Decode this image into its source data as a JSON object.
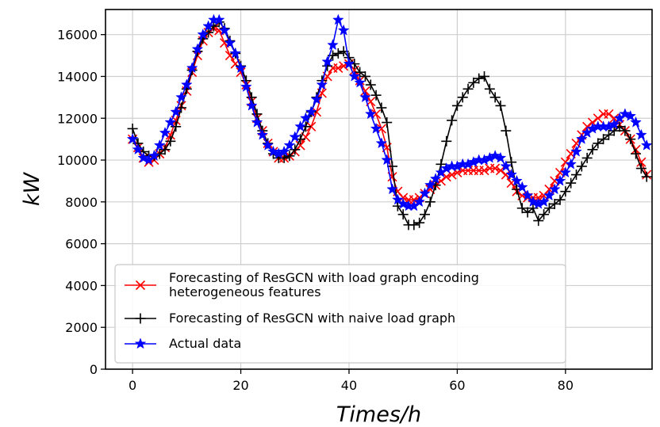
{
  "chart_data": {
    "type": "line",
    "xlabel": "Times/h",
    "ylabel": "kW",
    "xlim": [
      -5,
      96
    ],
    "ylim": [
      0,
      17200
    ],
    "x_ticks": [
      0,
      20,
      40,
      60,
      80
    ],
    "y_ticks": [
      0,
      2000,
      4000,
      6000,
      8000,
      10000,
      12000,
      14000,
      16000
    ],
    "grid": true,
    "legend_position": "lower-left",
    "series": [
      {
        "name": "Forecasting of ResGCN with load graph encoding heterogeneous features",
        "name_lines": [
          "Forecasting of ResGCN with load graph encoding",
          "heterogeneous features"
        ],
        "color": "#ff0000",
        "marker": "x",
        "x": [
          0,
          1,
          2,
          3,
          4,
          5,
          6,
          7,
          8,
          9,
          10,
          11,
          12,
          13,
          14,
          15,
          16,
          17,
          18,
          19,
          20,
          21,
          22,
          23,
          24,
          25,
          26,
          27,
          28,
          29,
          30,
          31,
          32,
          33,
          34,
          35,
          36,
          37,
          38,
          39,
          40,
          41,
          42,
          43,
          44,
          45,
          46,
          47,
          48,
          49,
          50,
          51,
          52,
          53,
          54,
          55,
          56,
          57,
          58,
          59,
          60,
          61,
          62,
          63,
          64,
          65,
          66,
          67,
          68,
          69,
          70,
          71,
          72,
          73,
          74,
          75,
          76,
          77,
          78,
          79,
          80,
          81,
          82,
          83,
          84,
          85,
          86,
          87,
          88,
          89,
          90,
          91,
          92,
          93,
          94,
          95
        ],
        "values": [
          11000,
          10600,
          10100,
          9900,
          10000,
          10300,
          10600,
          11200,
          11900,
          12600,
          13300,
          14200,
          15000,
          15700,
          16100,
          16300,
          16200,
          15600,
          15000,
          14600,
          14200,
          13600,
          12800,
          12000,
          11400,
          10800,
          10400,
          10100,
          10100,
          10200,
          10400,
          10700,
          11100,
          11600,
          12300,
          13200,
          14000,
          14400,
          14400,
          14500,
          14600,
          14300,
          13800,
          13300,
          12800,
          12200,
          11500,
          10600,
          9200,
          8500,
          8200,
          8100,
          8100,
          8200,
          8400,
          8600,
          8800,
          9000,
          9200,
          9300,
          9400,
          9500,
          9500,
          9500,
          9500,
          9500,
          9600,
          9600,
          9500,
          9300,
          8900,
          8500,
          8300,
          8200,
          8200,
          8200,
          8300,
          8600,
          9000,
          9400,
          9900,
          10300,
          10800,
          11200,
          11600,
          11800,
          12000,
          12200,
          12200,
          12000,
          11700,
          11400,
          11000,
          10500,
          9900,
          9300
        ]
      },
      {
        "name": "Forecasting of ResGCN with naive load graph",
        "name_lines": [
          "Forecasting of ResGCN with naive load graph"
        ],
        "color": "#000000",
        "marker": "+",
        "x": [
          0,
          1,
          2,
          3,
          4,
          5,
          6,
          7,
          8,
          9,
          10,
          11,
          12,
          13,
          14,
          15,
          16,
          17,
          18,
          19,
          20,
          21,
          22,
          23,
          24,
          25,
          26,
          27,
          28,
          29,
          30,
          31,
          32,
          33,
          34,
          35,
          36,
          37,
          38,
          39,
          40,
          41,
          42,
          43,
          44,
          45,
          46,
          47,
          48,
          49,
          50,
          51,
          52,
          53,
          54,
          55,
          56,
          57,
          58,
          59,
          60,
          61,
          62,
          63,
          64,
          65,
          66,
          67,
          68,
          69,
          70,
          71,
          72,
          73,
          74,
          75,
          76,
          77,
          78,
          79,
          80,
          81,
          82,
          83,
          84,
          85,
          86,
          87,
          88,
          89,
          90,
          91,
          92,
          93,
          94,
          95
        ],
        "values": [
          11500,
          10800,
          10400,
          10200,
          10200,
          10300,
          10500,
          10900,
          11600,
          12500,
          13400,
          14300,
          15200,
          15800,
          16100,
          16400,
          16600,
          16300,
          15700,
          15100,
          14500,
          13800,
          13000,
          12200,
          11400,
          10800,
          10300,
          10100,
          10100,
          10200,
          10500,
          11000,
          11600,
          12300,
          13000,
          13800,
          14500,
          15000,
          15100,
          15200,
          14900,
          14600,
          14200,
          14000,
          13600,
          13100,
          12500,
          11800,
          9700,
          7800,
          7400,
          6900,
          6900,
          7000,
          7400,
          8000,
          8800,
          9800,
          10900,
          11900,
          12600,
          13000,
          13400,
          13700,
          13900,
          14000,
          13400,
          13000,
          12600,
          11400,
          9900,
          8600,
          7700,
          7500,
          7700,
          7100,
          7400,
          7700,
          7900,
          8100,
          8500,
          8900,
          9300,
          9700,
          10100,
          10500,
          10800,
          11000,
          11200,
          11400,
          11600,
          11400,
          11000,
          10300,
          9600,
          9200
        ]
      },
      {
        "name": "Actual data",
        "name_lines": [
          "Actual data"
        ],
        "color": "#0000ff",
        "marker": "star",
        "x": [
          0,
          1,
          2,
          3,
          4,
          5,
          6,
          7,
          8,
          9,
          10,
          11,
          12,
          13,
          14,
          15,
          16,
          17,
          18,
          19,
          20,
          21,
          22,
          23,
          24,
          25,
          26,
          27,
          28,
          29,
          30,
          31,
          32,
          33,
          34,
          35,
          36,
          37,
          38,
          39,
          40,
          41,
          42,
          43,
          44,
          45,
          46,
          47,
          48,
          49,
          50,
          51,
          52,
          53,
          54,
          55,
          56,
          57,
          58,
          59,
          60,
          61,
          62,
          63,
          64,
          65,
          66,
          67,
          68,
          69,
          70,
          71,
          72,
          73,
          74,
          75,
          76,
          77,
          78,
          79,
          80,
          81,
          82,
          83,
          84,
          85,
          86,
          87,
          88,
          89,
          90,
          91,
          92,
          93,
          94,
          95
        ],
        "values": [
          11000,
          10500,
          10100,
          10000,
          10200,
          10700,
          11300,
          11800,
          12300,
          13000,
          13600,
          14400,
          15300,
          16000,
          16400,
          16700,
          16700,
          16200,
          15600,
          15100,
          14400,
          13500,
          12600,
          11800,
          11200,
          10700,
          10400,
          10300,
          10400,
          10700,
          11100,
          11600,
          12000,
          12300,
          12900,
          13600,
          14700,
          15500,
          16700,
          16200,
          14600,
          14000,
          13700,
          13000,
          12200,
          11500,
          10800,
          10000,
          8600,
          8100,
          7900,
          7800,
          7800,
          8000,
          8400,
          8800,
          9100,
          9400,
          9600,
          9700,
          9700,
          9800,
          9800,
          9900,
          10000,
          10000,
          10100,
          10200,
          10100,
          9700,
          9300,
          9000,
          8700,
          8300,
          8000,
          7900,
          8000,
          8300,
          8600,
          9000,
          9400,
          9800,
          10400,
          11000,
          11300,
          11500,
          11600,
          11600,
          11600,
          11700,
          12000,
          12200,
          12100,
          11800,
          11200,
          10700
        ]
      }
    ]
  }
}
